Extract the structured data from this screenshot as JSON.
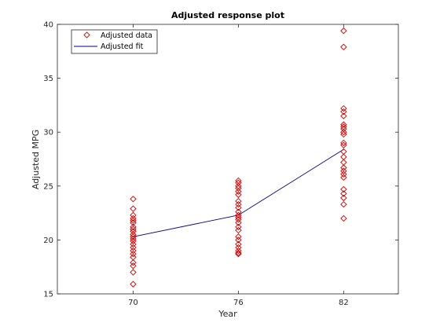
{
  "chart_data": {
    "type": "scatter",
    "title": "Adjusted response plot",
    "xlabel": "Year",
    "ylabel": "Adjusted MPG",
    "categories": [
      "70",
      "76",
      "82"
    ],
    "xlim": [
      -0.72,
      2.52
    ],
    "ylim": [
      15,
      40
    ],
    "yticks": [
      15,
      20,
      25,
      30,
      35,
      40
    ],
    "grid": false,
    "legend_position": "top-left",
    "series": [
      {
        "name": "Adjusted data",
        "kind": "marker",
        "marker": "diamond",
        "color": "#cc0000",
        "points": {
          "70": [
            23.8,
            22.9,
            22.3,
            22.0,
            21.8,
            21.6,
            21.2,
            21.0,
            20.8,
            20.5,
            20.3,
            20.1,
            19.9,
            19.6,
            19.3,
            19.0,
            18.7,
            18.4,
            17.9,
            17.6,
            17.0,
            15.9
          ],
          "76": [
            25.5,
            25.3,
            25.0,
            24.8,
            24.5,
            24.2,
            23.6,
            23.3,
            23.0,
            22.6,
            22.3,
            22.1,
            21.9,
            21.6,
            21.2,
            20.9,
            20.3,
            20.0,
            19.6,
            19.3,
            19.0,
            18.8,
            18.7
          ],
          "82": [
            39.4,
            37.9,
            32.2,
            31.9,
            31.5,
            30.7,
            30.5,
            30.3,
            30.0,
            29.8,
            29.0,
            28.8,
            28.2,
            27.7,
            27.2,
            26.7,
            26.4,
            26.1,
            25.8,
            24.7,
            24.3,
            23.9,
            23.3,
            22.0
          ]
        }
      },
      {
        "name": "Adjusted fit",
        "kind": "line",
        "color": "#00008b",
        "values": [
          20.3,
          22.3,
          28.4
        ]
      }
    ]
  }
}
